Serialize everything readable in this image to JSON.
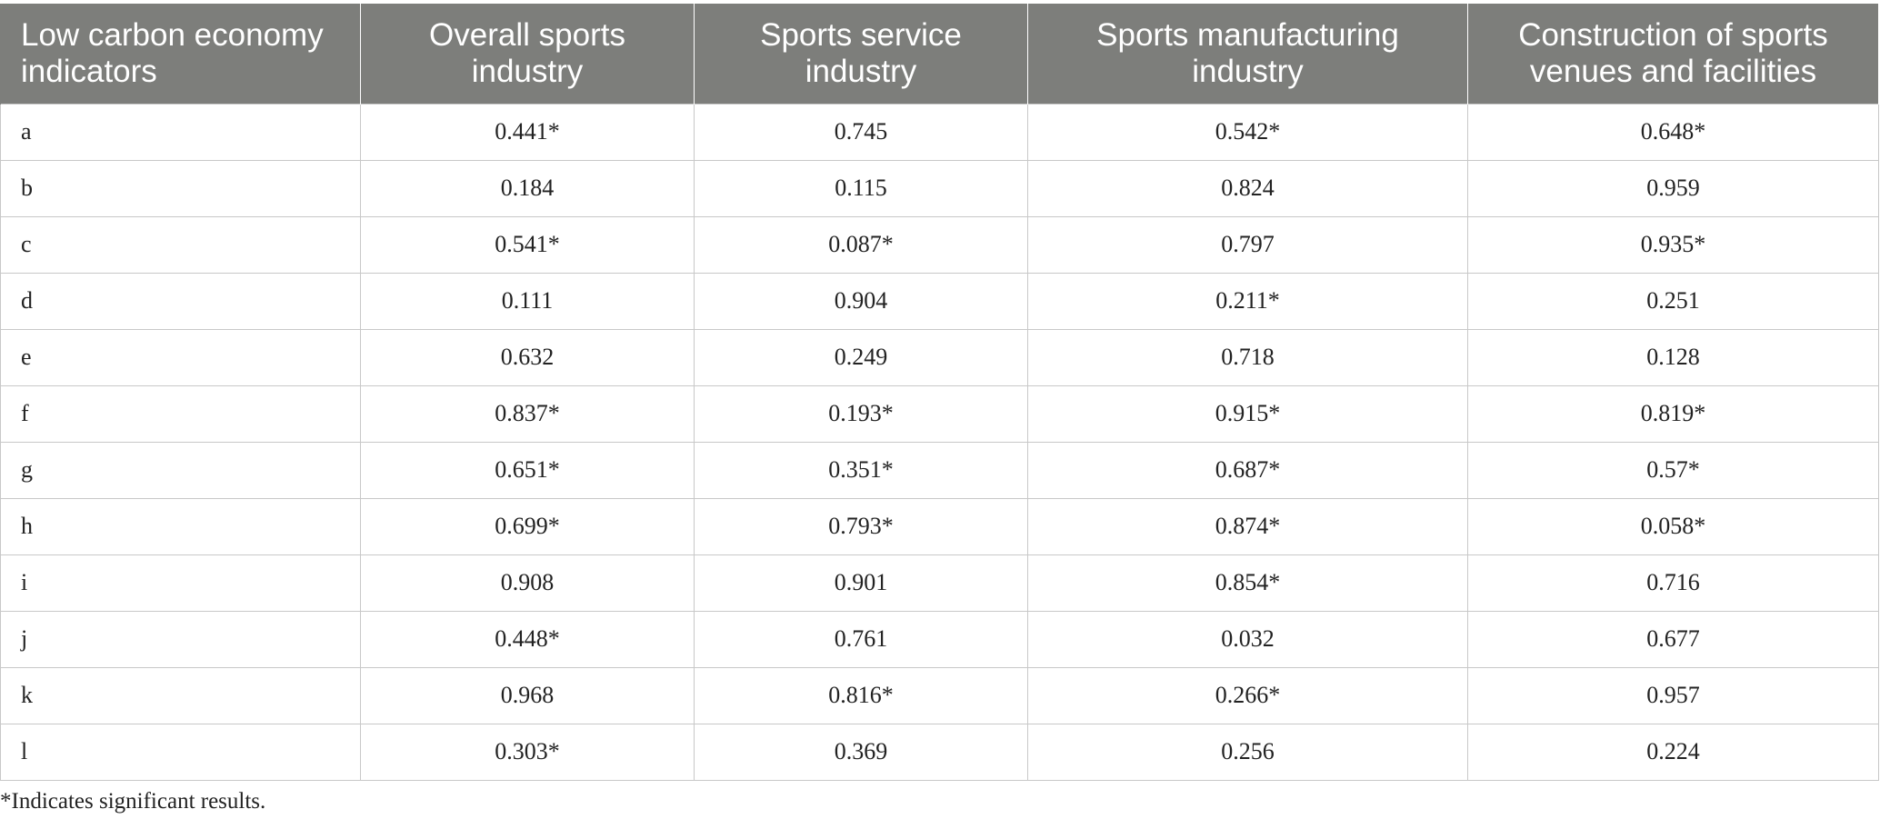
{
  "table": {
    "headers": [
      "Low carbon economy indicators",
      "Overall sports industry",
      "Sports service industry",
      "Sports manufacturing industry",
      "Construction of sports venues and facilities"
    ],
    "rows": [
      [
        "a",
        "0.441*",
        "0.745",
        "0.542*",
        "0.648*"
      ],
      [
        "b",
        "0.184",
        "0.115",
        "0.824",
        "0.959"
      ],
      [
        "c",
        "0.541*",
        "0.087*",
        "0.797",
        "0.935*"
      ],
      [
        "d",
        "0.111",
        "0.904",
        "0.211*",
        "0.251"
      ],
      [
        "e",
        "0.632",
        "0.249",
        "0.718",
        "0.128"
      ],
      [
        "f",
        "0.837*",
        "0.193*",
        "0.915*",
        "0.819*"
      ],
      [
        "g",
        "0.651*",
        "0.351*",
        "0.687*",
        "0.57*"
      ],
      [
        "h",
        "0.699*",
        "0.793*",
        "0.874*",
        "0.058*"
      ],
      [
        "i",
        "0.908",
        "0.901",
        "0.854*",
        "0.716"
      ],
      [
        "j",
        "0.448*",
        "0.761",
        "0.032",
        "0.677"
      ],
      [
        "k",
        "0.968",
        "0.816*",
        "0.266*",
        "0.957"
      ],
      [
        "l",
        "0.303*",
        "0.369",
        "0.256",
        "0.224"
      ]
    ]
  },
  "footnote": "*Indicates significant results."
}
